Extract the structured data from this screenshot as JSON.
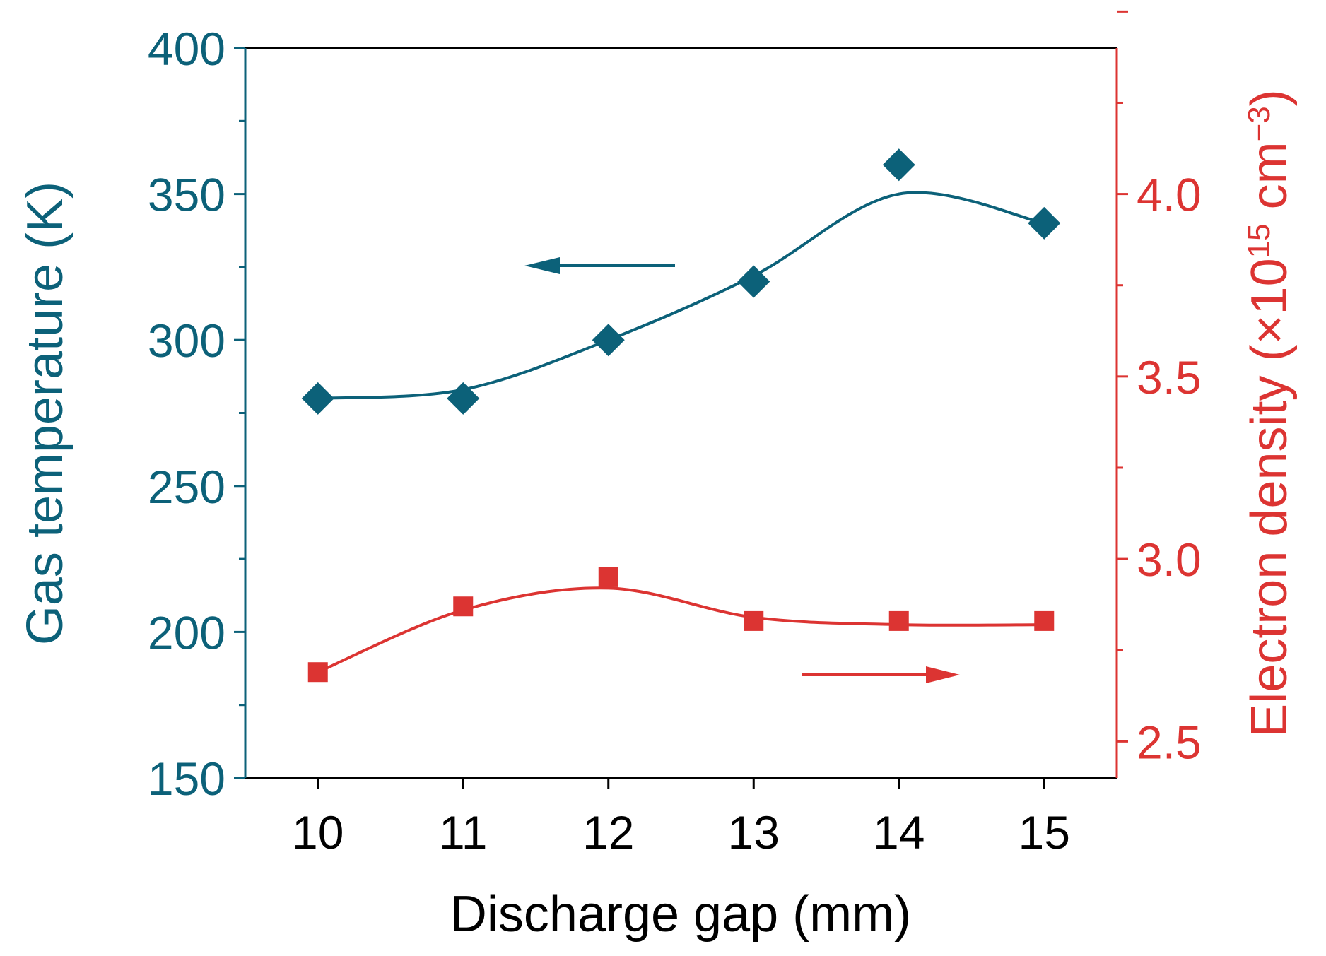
{
  "chart_data": {
    "type": "line",
    "title": "",
    "xlabel": "Discharge gap (mm)",
    "x": [
      10,
      11,
      12,
      13,
      14,
      15
    ],
    "xlim": [
      9.5,
      15.5
    ],
    "x_ticks": [
      "10",
      "11",
      "12",
      "13",
      "14",
      "15"
    ],
    "left_axis": {
      "label": "Gas temperature (K)",
      "ylim": [
        150,
        400
      ],
      "ticks": [
        "150",
        "200",
        "250",
        "300",
        "350",
        "400"
      ],
      "color": "#0c6179"
    },
    "right_axis": {
      "label_main": "Electron density (×10",
      "label_sup1": "15",
      "label_mid": " cm",
      "label_sup2": "−3",
      "label_end": ")",
      "ylim": [
        2.4,
        4.4
      ],
      "ticks": [
        "2.5",
        "3.0",
        "3.5",
        "4.0"
      ],
      "color": "#dc3432"
    },
    "series": [
      {
        "name": "Gas temperature",
        "axis": "left",
        "marker": "diamond",
        "color": "#0c6179",
        "values": [
          280,
          280,
          300,
          320,
          360,
          340
        ],
        "fit_curve": [
          [
            10,
            280
          ],
          [
            11,
            283
          ],
          [
            12,
            300
          ],
          [
            13,
            322
          ],
          [
            14,
            350
          ],
          [
            15,
            340
          ]
        ]
      },
      {
        "name": "Electron density",
        "axis": "right",
        "marker": "square",
        "color": "#dc3432",
        "values": [
          2.69,
          2.87,
          2.95,
          2.83,
          2.83,
          2.83
        ],
        "fit_curve": [
          [
            10,
            2.69
          ],
          [
            11,
            2.86
          ],
          [
            12,
            2.92
          ],
          [
            13,
            2.84
          ],
          [
            14,
            2.82
          ],
          [
            15,
            2.82
          ]
        ]
      }
    ],
    "annotations": [
      {
        "type": "arrow",
        "direction": "left",
        "refers_to": "Gas temperature",
        "color": "#0c6179"
      },
      {
        "type": "arrow",
        "direction": "right",
        "refers_to": "Electron density",
        "color": "#dc3432"
      }
    ]
  }
}
